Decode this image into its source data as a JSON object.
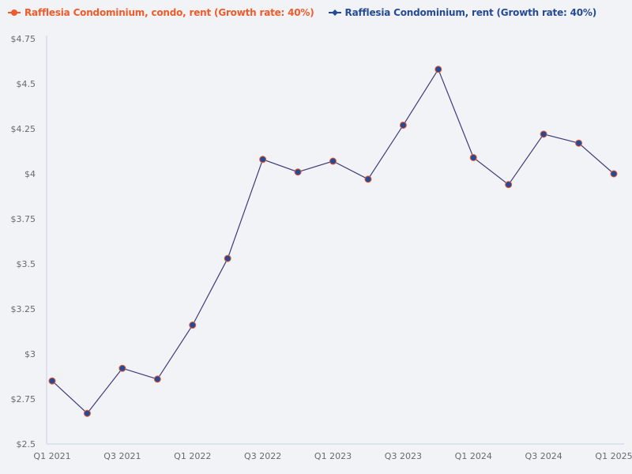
{
  "legend": [
    {
      "label": "Rafflesia Condominium, condo, rent (Growth rate: 40%)",
      "color": "#f15a29",
      "marker": "circle"
    },
    {
      "label": "Rafflesia Condominium, rent (Growth rate: 40%)",
      "color": "#254a97",
      "marker": "diamond"
    }
  ],
  "colors": {
    "background": "#f2f3f6",
    "axis": "#c8d3e6",
    "line": "#3d3b7a",
    "marker_fill": "#254a97",
    "marker_stroke": "#f15a29",
    "tick_text": "#666a70"
  },
  "chart_data": {
    "type": "line",
    "title": "",
    "xlabel": "",
    "ylabel": "",
    "ylim": [
      2.5,
      4.75
    ],
    "grid": false,
    "legend_position": "top-left",
    "y_ticks": [
      "$2.5",
      "$2.75",
      "$3",
      "$3.25",
      "$3.5",
      "$3.75",
      "$4",
      "$4.25",
      "$4.5",
      "$4.75"
    ],
    "y_tick_values": [
      2.5,
      2.75,
      3,
      3.25,
      3.5,
      3.75,
      4,
      4.25,
      4.5,
      4.75
    ],
    "x_tick_labels": [
      "Q1 2021",
      "Q3 2021",
      "Q1 2022",
      "Q3 2022",
      "Q1 2023",
      "Q3 2023",
      "Q1 2024",
      "Q3 2024",
      "Q1 2025"
    ],
    "categories": [
      "Q1 2021",
      "Q2 2021",
      "Q3 2021",
      "Q4 2021",
      "Q1 2022",
      "Q2 2022",
      "Q3 2022",
      "Q4 2022",
      "Q1 2023",
      "Q2 2023",
      "Q3 2023",
      "Q4 2023",
      "Q1 2024",
      "Q2 2024",
      "Q3 2024",
      "Q4 2024",
      "Q1 2025"
    ],
    "series": [
      {
        "name": "Rafflesia Condominium, condo, rent (Growth rate: 40%)",
        "color": "#f15a29",
        "values": [
          2.85,
          2.67,
          2.92,
          2.86,
          3.16,
          3.53,
          4.08,
          4.01,
          4.07,
          3.97,
          4.27,
          4.58,
          4.09,
          3.94,
          4.22,
          4.17,
          4.0
        ]
      },
      {
        "name": "Rafflesia Condominium, rent (Growth rate: 40%)",
        "color": "#254a97",
        "values": [
          2.85,
          2.67,
          2.92,
          2.86,
          3.16,
          3.53,
          4.08,
          4.01,
          4.07,
          3.97,
          4.27,
          4.58,
          4.09,
          3.94,
          4.22,
          4.17,
          4.0
        ]
      }
    ]
  }
}
